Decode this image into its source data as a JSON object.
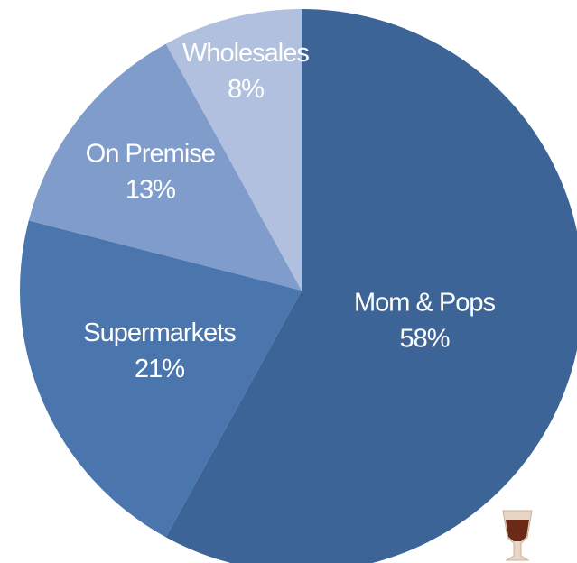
{
  "chart_data": {
    "type": "pie",
    "categories": [
      "Mom & Pops",
      "Supermarkets",
      "On Premise",
      "Wholesales"
    ],
    "values": [
      58,
      21,
      13,
      8
    ],
    "value_labels": [
      "58%",
      "21%",
      "13%",
      "8%"
    ],
    "colors": [
      "#3d6496",
      "#4a76ad",
      "#7f9ccb",
      "#b0c0de"
    ]
  }
}
